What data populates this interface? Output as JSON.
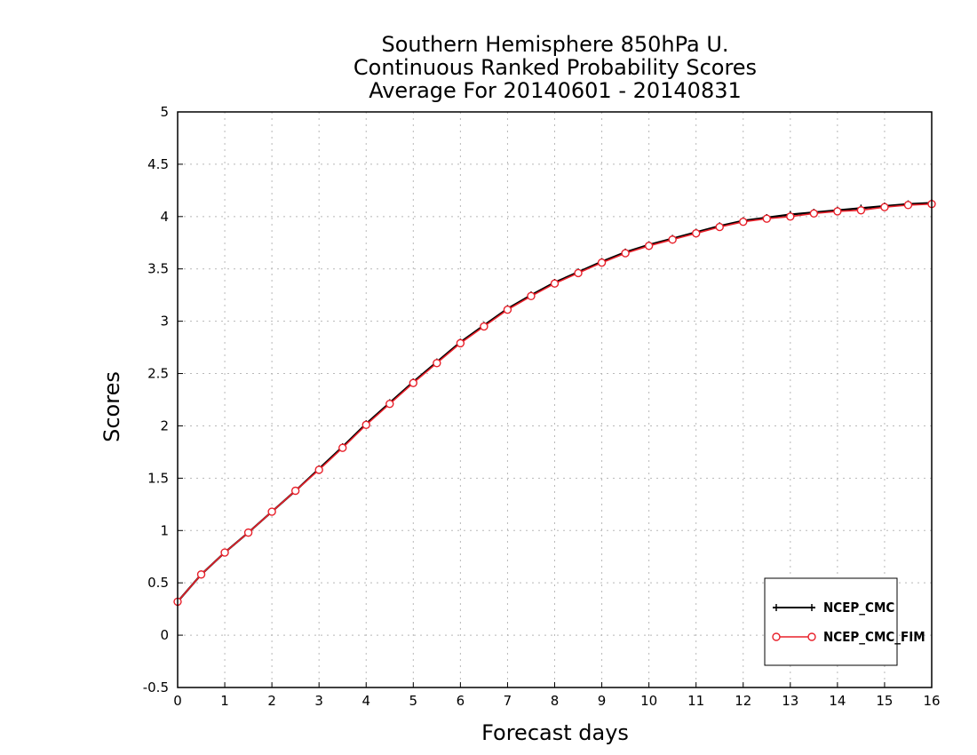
{
  "chart_data": {
    "type": "line",
    "title": [
      "Southern Hemisphere 850hPa U.",
      "Continuous Ranked Probability Scores",
      "Average For 20140601 - 20140831"
    ],
    "xlabel": "Forecast days",
    "ylabel": "Scores",
    "xlim": [
      0,
      16
    ],
    "ylim": [
      -0.5,
      5
    ],
    "xticks": [
      0,
      1,
      2,
      3,
      4,
      5,
      6,
      7,
      8,
      9,
      10,
      11,
      12,
      13,
      14,
      15,
      16
    ],
    "yticks": [
      -0.5,
      0,
      0.5,
      1,
      1.5,
      2,
      2.5,
      3,
      3.5,
      4,
      4.5,
      5
    ],
    "ytick_labels": [
      "-0.5",
      "0",
      "0.5",
      "1",
      "1.5",
      "2",
      "2.5",
      "3",
      "3.5",
      "4",
      "4.5",
      "5"
    ],
    "grid": true,
    "legend_position": "bottom-right",
    "x": [
      0,
      0.5,
      1,
      1.5,
      2,
      2.5,
      3,
      3.5,
      4,
      4.5,
      5,
      5.5,
      6,
      6.5,
      7,
      7.5,
      8,
      8.5,
      9,
      9.5,
      10,
      10.5,
      11,
      11.5,
      12,
      12.5,
      13,
      13.5,
      14,
      14.5,
      15,
      15.5,
      16
    ],
    "series": [
      {
        "name": "NCEP_CMC",
        "color": "#000000",
        "marker": "plus",
        "values": [
          0.32,
          0.58,
          0.79,
          0.98,
          1.18,
          1.38,
          1.59,
          1.8,
          2.02,
          2.22,
          2.42,
          2.61,
          2.8,
          2.96,
          3.12,
          3.25,
          3.37,
          3.47,
          3.57,
          3.66,
          3.73,
          3.79,
          3.85,
          3.91,
          3.96,
          3.99,
          4.02,
          4.04,
          4.06,
          4.08,
          4.1,
          4.12,
          4.13
        ]
      },
      {
        "name": "NCEP_CMC_FIM",
        "color": "#e8202a",
        "marker": "circle",
        "values": [
          0.32,
          0.58,
          0.79,
          0.98,
          1.18,
          1.38,
          1.58,
          1.79,
          2.01,
          2.21,
          2.41,
          2.6,
          2.79,
          2.95,
          3.11,
          3.24,
          3.36,
          3.46,
          3.56,
          3.65,
          3.72,
          3.78,
          3.84,
          3.9,
          3.95,
          3.98,
          4.0,
          4.03,
          4.05,
          4.06,
          4.09,
          4.11,
          4.12
        ]
      }
    ]
  }
}
